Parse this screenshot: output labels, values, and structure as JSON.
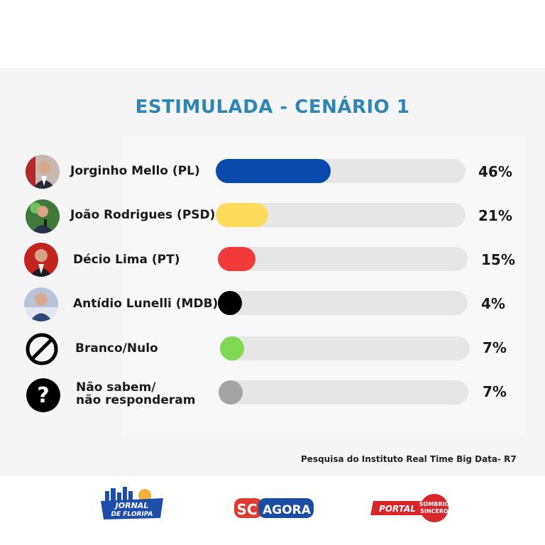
{
  "title": "ESTIMULADA - CENÁRIO 1",
  "source": "Pesquisa do Instituto Real Time Big Data- R7",
  "chart_data": {
    "type": "bar",
    "orientation": "horizontal",
    "title": "ESTIMULADA - CENÁRIO 1",
    "xlim": [
      0,
      100
    ],
    "grid": false,
    "categories": [
      "Jorginho Mello (PL)",
      "João Rodrigues (PSD)",
      "Décio Lima (PT)",
      "Antídio Lunelli (MDB)",
      "Branco/Nulo",
      "Não sabem/ não responderam"
    ],
    "values": [
      46,
      21,
      15,
      4,
      7,
      7
    ],
    "value_labels": [
      "46%",
      "21%",
      "15%",
      "4%",
      "7%",
      "7%"
    ],
    "colors": [
      "#0a4aad",
      "#fddc5c",
      "#f23a3a",
      "#000000",
      "#7fd955",
      "#a3a3a3"
    ]
  },
  "rows": [
    {
      "name": "Jorginho Mello (PL)",
      "icon": "candidate-photo",
      "color": "#0a4aad"
    },
    {
      "name": "João Rodrigues (PSD)",
      "icon": "candidate-photo",
      "color": "#fddc5c"
    },
    {
      "name": "Décio Lima (PT)",
      "icon": "candidate-photo",
      "color": "#f23a3a"
    },
    {
      "name": "Antídio Lunelli (MDB)",
      "icon": "candidate-photo",
      "color": "#000000"
    },
    {
      "name": "Branco/Nulo",
      "icon": "prohibited-icon",
      "color": "#7fd955"
    },
    {
      "name_line1": "Não sabem/",
      "name_line2": "não responderam",
      "icon": "question-mark-icon",
      "color": "#a3a3a3"
    }
  ],
  "logos": {
    "jornal_line1": "JORNAL",
    "jornal_line2": "DE FLORIPA",
    "sc": "SC",
    "agora": "AGORA",
    "portal": "PORTAL",
    "sombrio_line1": "SOMBRIO",
    "sombrio_line2": "SINCERO"
  }
}
